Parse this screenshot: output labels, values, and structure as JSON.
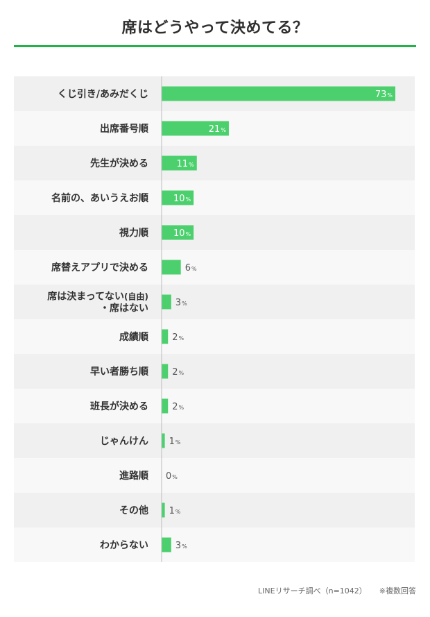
{
  "chart_data": {
    "type": "bar",
    "orientation": "horizontal",
    "title": "席はどうやって決めてる？",
    "categories": [
      "くじ引き/あみだくじ",
      "出席番号順",
      "先生が決める",
      "名前の、あいうえお順",
      "視力順",
      "席替えアプリで決める",
      "席は決まってない(自由)\n・席はない",
      "成績順",
      "早い者勝ち順",
      "班長が決める",
      "じゃんけん",
      "進路順",
      "その他",
      "わからない"
    ],
    "values": [
      73,
      21,
      11,
      10,
      10,
      6,
      3,
      2,
      2,
      2,
      1,
      0,
      1,
      3
    ],
    "unit": "%",
    "xlim": [
      0,
      73
    ],
    "grid": false,
    "legend": "none",
    "bar_color": "#4cd06d",
    "row_colors": [
      "#f0f0f0",
      "#f8f8f8"
    ],
    "accent_color": "#21b24a"
  },
  "footnote": {
    "source": "LINEリサーチ調べ（n=1042）",
    "note": "※複数回答"
  }
}
